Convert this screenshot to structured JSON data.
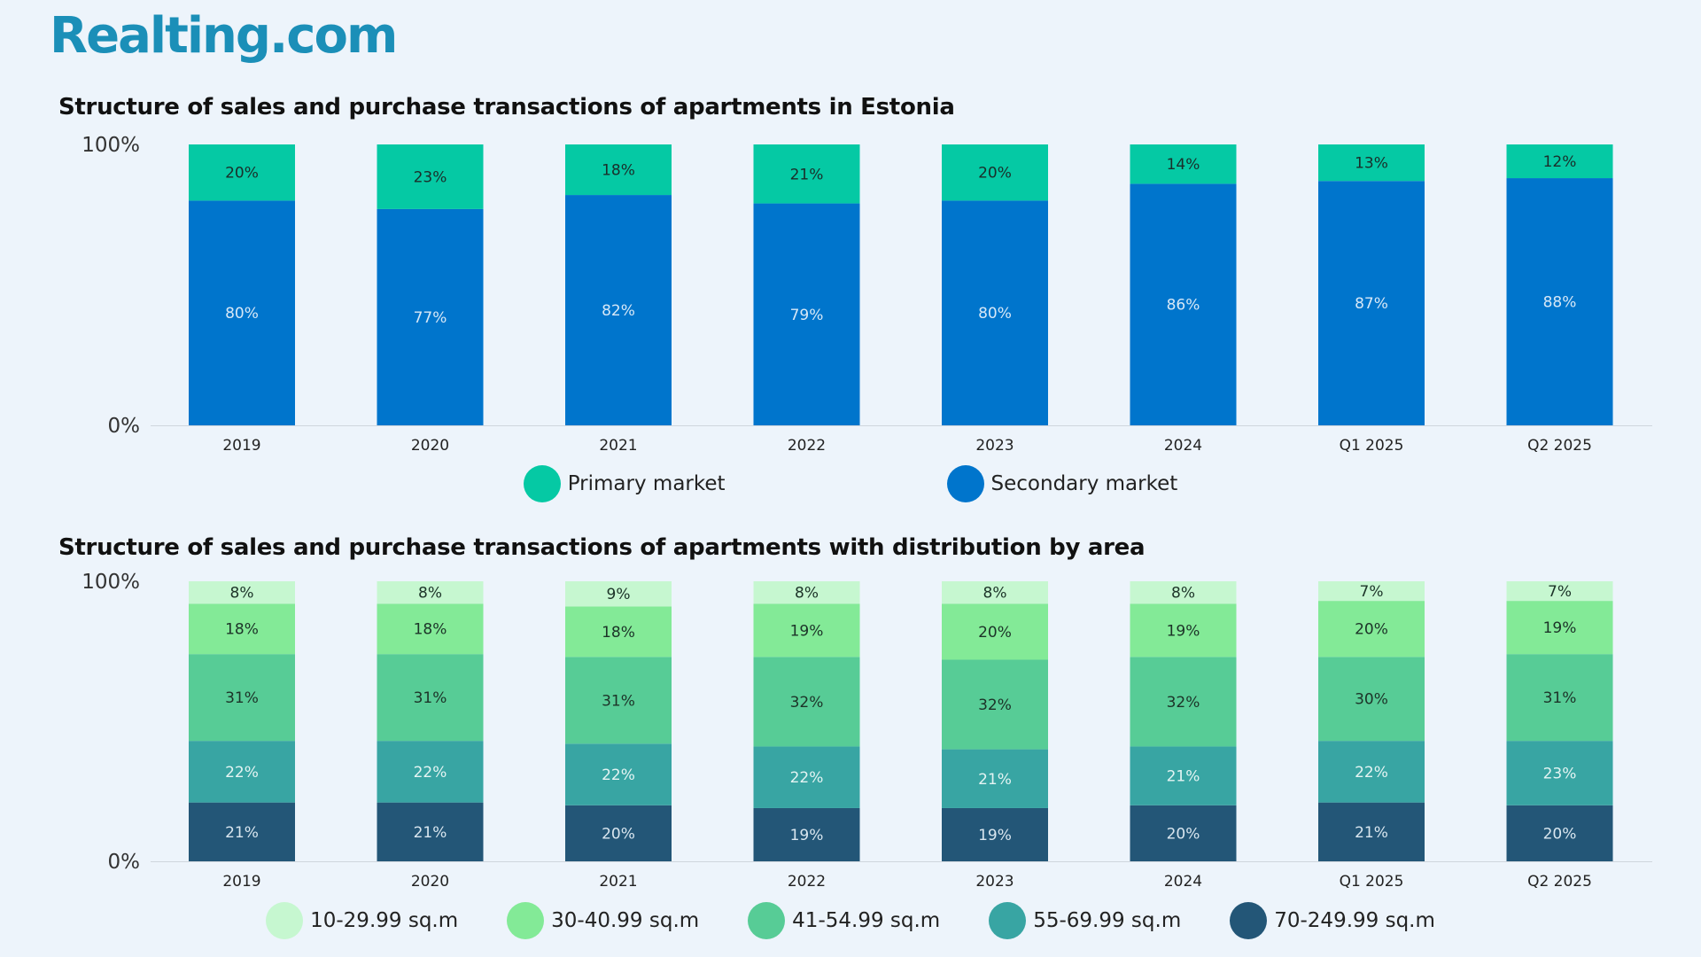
{
  "brand": {
    "logo_text": "Realting.com",
    "color": "#1b8fb8"
  },
  "chart_data": [
    {
      "type": "bar",
      "stacked": true,
      "title": "Structure of sales and purchase transactions of apartments in Estonia",
      "categories": [
        "2019",
        "2020",
        "2021",
        "2022",
        "2023",
        "2024",
        "Q1 2025",
        "Q2 2025"
      ],
      "y_ticks": [
        "0%",
        "100%"
      ],
      "ylim": [
        0,
        100
      ],
      "legend_position": "bottom",
      "series": [
        {
          "name": "Secondary market",
          "color": "#0075cc",
          "text_color": "#d7e8f7",
          "values": [
            80,
            77,
            82,
            79,
            80,
            86,
            87,
            88
          ]
        },
        {
          "name": "Primary market",
          "color": "#05c9a4",
          "text_color": "#1a2e2a",
          "values": [
            20,
            23,
            18,
            21,
            20,
            14,
            13,
            12
          ]
        }
      ],
      "legend_order": [
        "Primary market",
        "Secondary market"
      ]
    },
    {
      "type": "bar",
      "stacked": true,
      "title": "Structure of sales and purchase transactions of apartments with distribution by area",
      "categories": [
        "2019",
        "2020",
        "2021",
        "2022",
        "2023",
        "2024",
        "Q1 2025",
        "Q2 2025"
      ],
      "y_ticks": [
        "0%",
        "100%"
      ],
      "ylim": [
        0,
        100
      ],
      "legend_position": "bottom",
      "series": [
        {
          "name": "70-249.99 sq.m",
          "color": "#235677",
          "text_color": "#d9e6ef",
          "values": [
            21,
            21,
            20,
            19,
            19,
            20,
            21,
            20
          ]
        },
        {
          "name": "55-69.99 sq.m",
          "color": "#38a5a3",
          "text_color": "#e4f4f3",
          "values": [
            22,
            22,
            22,
            22,
            21,
            21,
            22,
            23
          ]
        },
        {
          "name": "41-54.99 sq.m",
          "color": "#57cc96",
          "text_color": "#1c3328",
          "values": [
            31,
            31,
            31,
            32,
            32,
            32,
            30,
            31
          ]
        },
        {
          "name": "30-40.99 sq.m",
          "color": "#83ea97",
          "text_color": "#1c3328",
          "values": [
            18,
            18,
            18,
            19,
            20,
            19,
            20,
            19
          ]
        },
        {
          "name": "10-29.99 sq.m",
          "color": "#c6f7d0",
          "text_color": "#1c3328",
          "values": [
            8,
            8,
            9,
            8,
            8,
            8,
            7,
            7
          ]
        }
      ],
      "legend_order": [
        "10-29.99 sq.m",
        "30-40.99 sq.m",
        "41-54.99 sq.m",
        "55-69.99 sq.m",
        "70-249.99 sq.m"
      ]
    }
  ]
}
